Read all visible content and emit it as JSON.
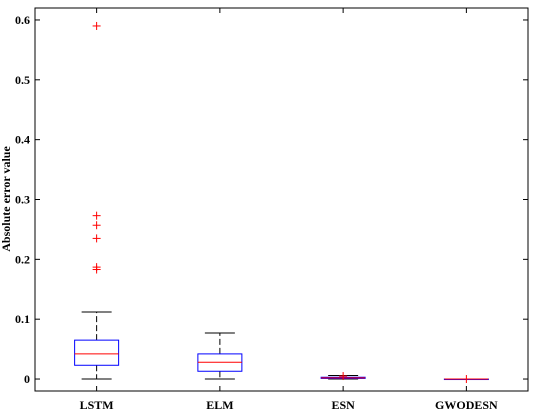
{
  "chart_data": {
    "type": "boxplot",
    "title": "",
    "xlabel": "",
    "ylabel": "Absolute error value",
    "ylim": [
      -0.02,
      0.62
    ],
    "yticks": [
      "0",
      "0.1",
      "0.2",
      "0.3",
      "0.4",
      "0.5",
      "0.6"
    ],
    "categories": [
      "LSTM",
      "ELM",
      "ESN",
      "GWODESN"
    ],
    "boxes": [
      {
        "name": "LSTM",
        "whisker_low": 0.0,
        "q1": 0.023,
        "median": 0.042,
        "q3": 0.065,
        "whisker_high": 0.112,
        "outliers": [
          0.59,
          0.273,
          0.257,
          0.235,
          0.187,
          0.183
        ]
      },
      {
        "name": "ELM",
        "whisker_low": 0.0,
        "q1": 0.013,
        "median": 0.028,
        "q3": 0.042,
        "whisker_high": 0.077,
        "outliers": []
      },
      {
        "name": "ESN",
        "whisker_low": 0.0,
        "q1": 0.001,
        "median": 0.002,
        "q3": 0.003,
        "whisker_high": 0.006,
        "outliers": [
          0.005
        ]
      },
      {
        "name": "GWODESN",
        "whisker_low": 0.0,
        "q1": 0.0,
        "median": 0.0,
        "q3": 0.0,
        "whisker_high": 0.0,
        "outliers": [
          0.0
        ]
      }
    ],
    "colors": {
      "box": "#0000ff",
      "median": "#ff0000",
      "whisker": "#000000",
      "outlier": "#ff0000",
      "axes": "#000000"
    }
  }
}
